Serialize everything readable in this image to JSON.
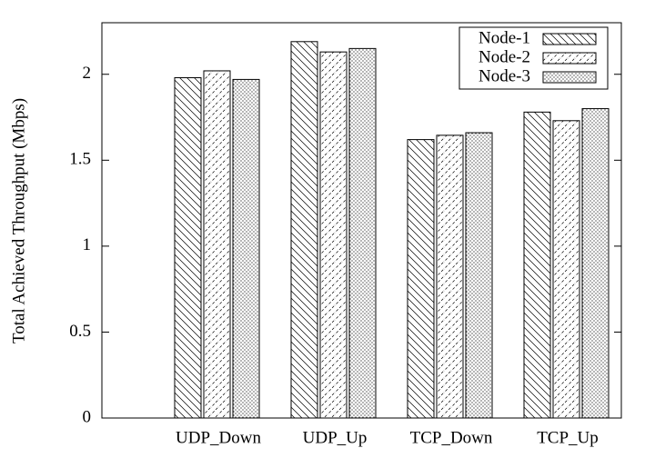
{
  "chart_data": {
    "type": "bar",
    "y_label": "Total Achieved Throughput (Mbps)",
    "categories": [
      "UDP_Down",
      "UDP_Up",
      "TCP_Down",
      "TCP_Up"
    ],
    "series": [
      {
        "name": "Node-1",
        "color": "#000000",
        "pattern": "backslash",
        "values": [
          1.98,
          2.19,
          1.62,
          1.78
        ]
      },
      {
        "name": "Node-2",
        "color": "#000000",
        "pattern": "slash",
        "values": [
          2.02,
          2.13,
          1.645,
          1.73
        ]
      },
      {
        "name": "Node-3",
        "color": "#000000",
        "pattern": "dots",
        "values": [
          1.97,
          2.15,
          1.66,
          1.8
        ]
      }
    ],
    "ylim": [
      0,
      2.3
    ],
    "yticks": [
      0,
      0.5,
      1,
      1.5,
      2
    ],
    "legend": "top-right"
  }
}
